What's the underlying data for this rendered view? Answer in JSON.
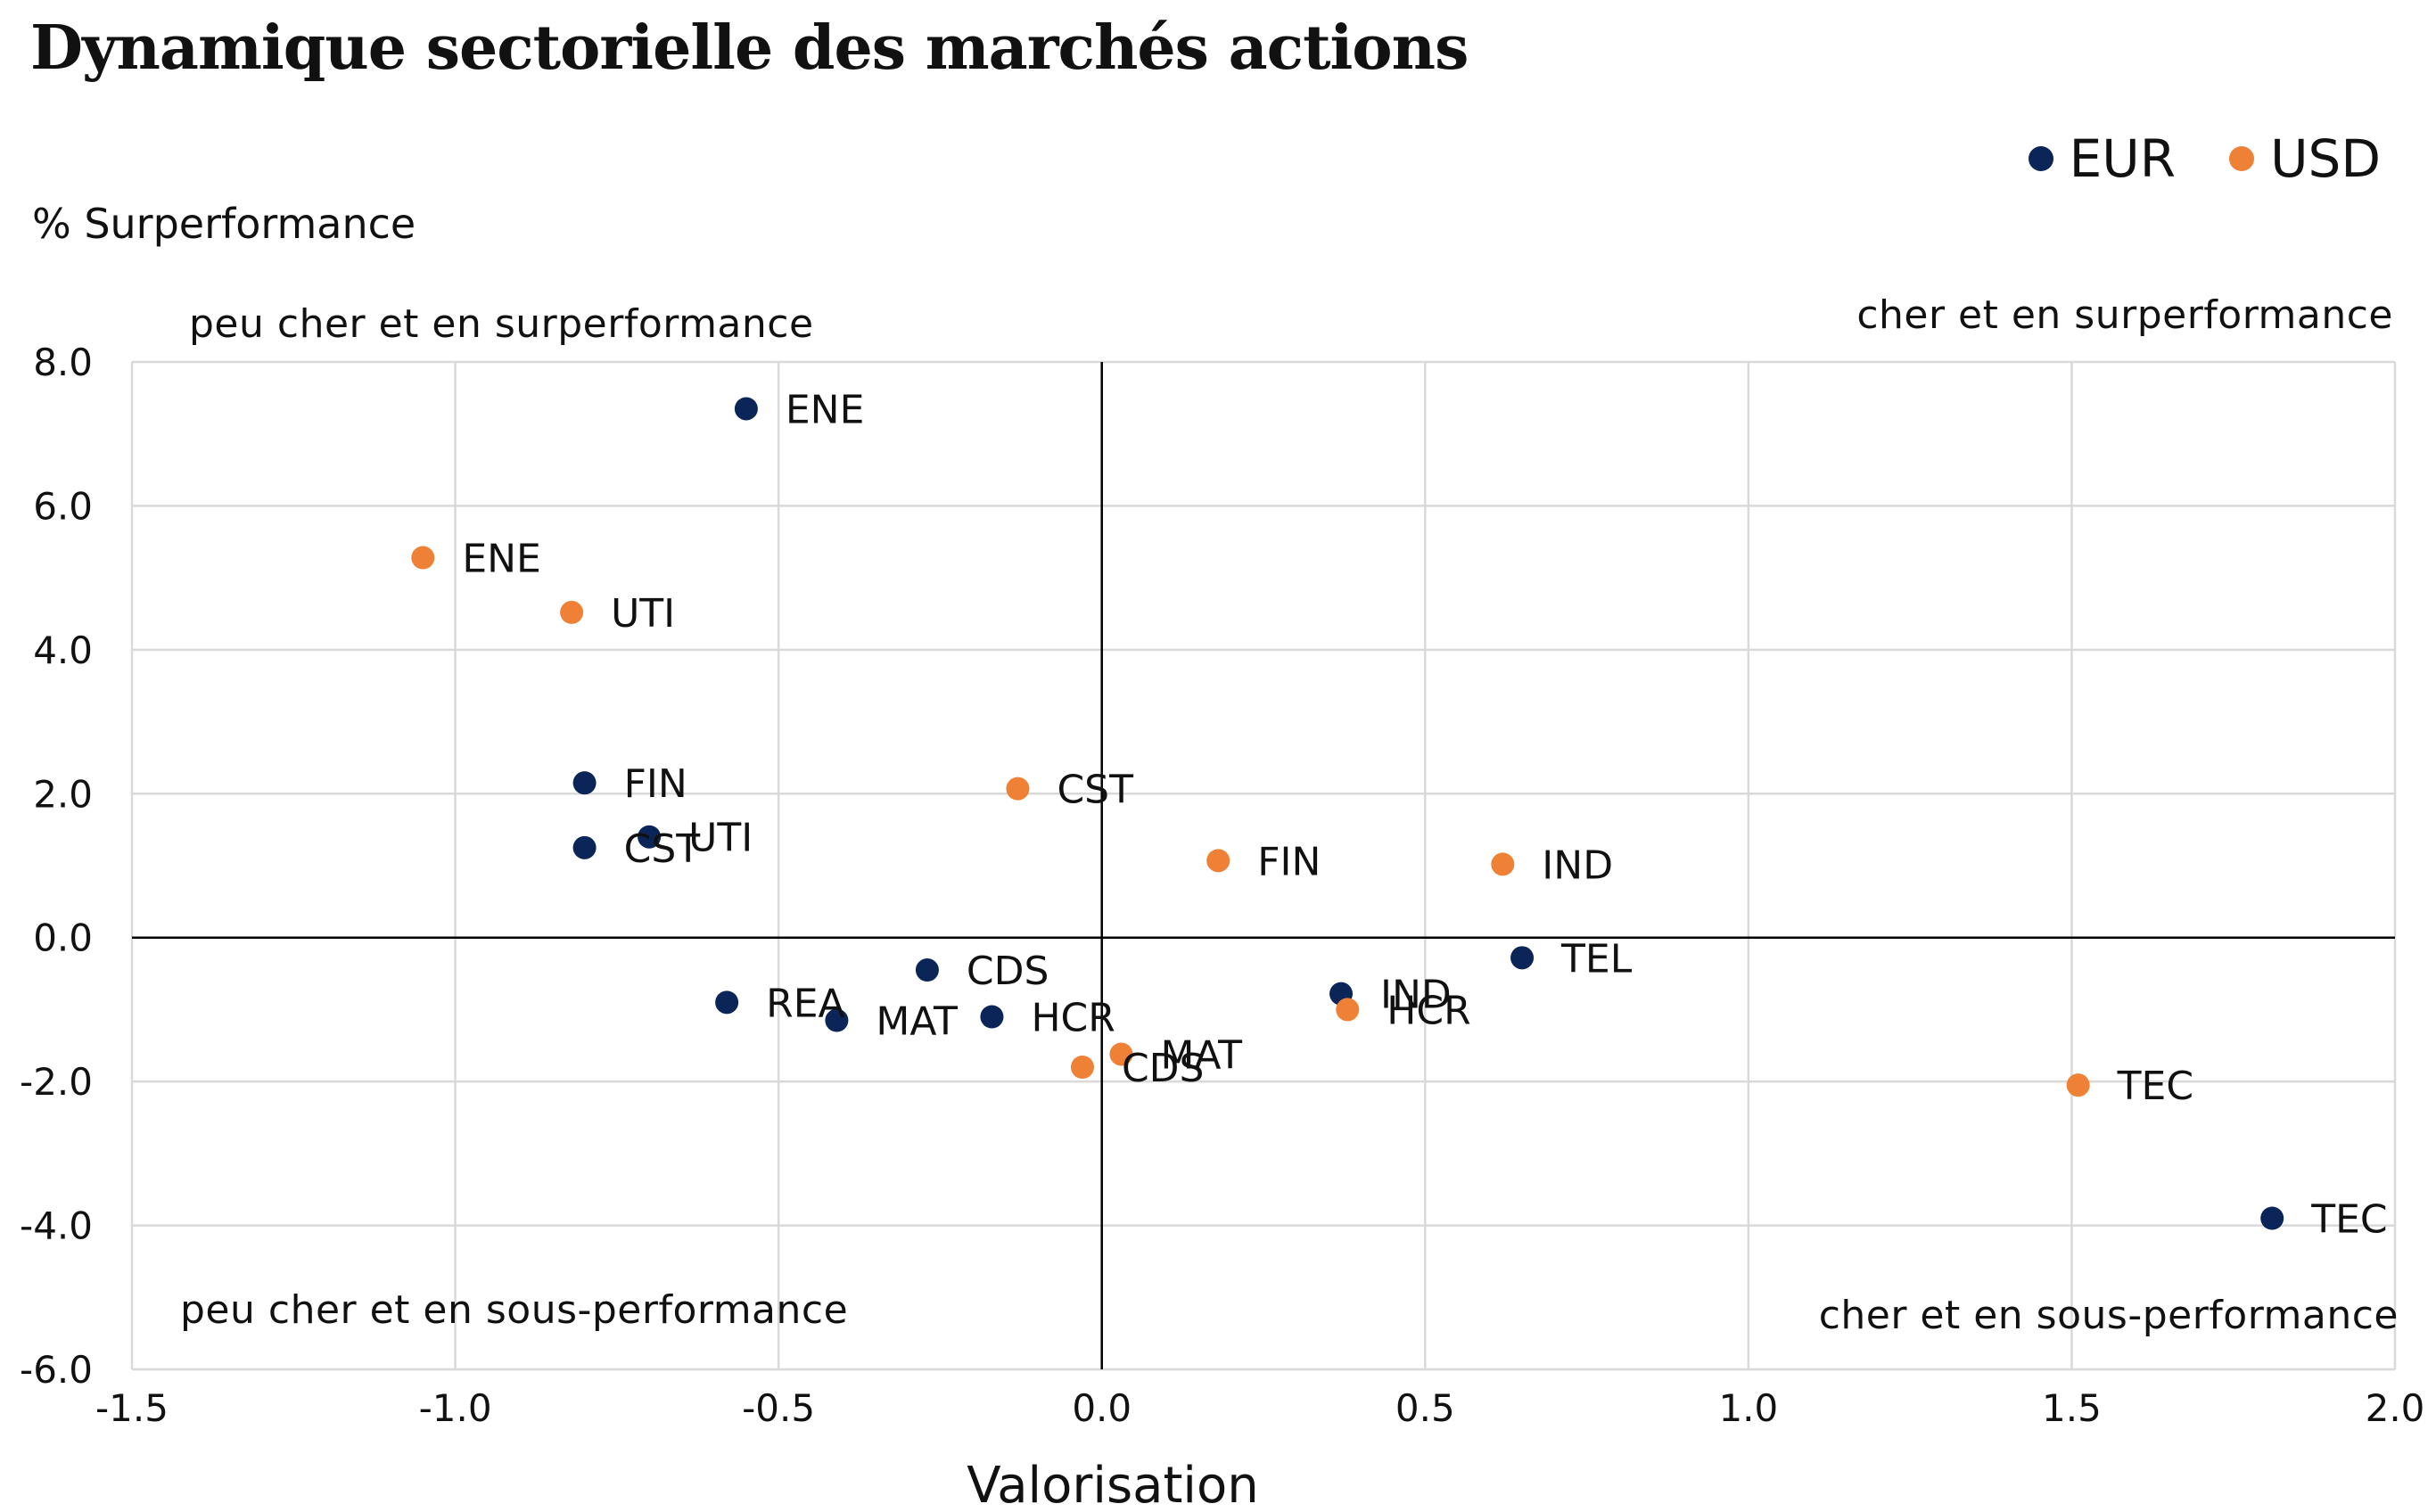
{
  "title": "Dynamique sectorielle des marchés actions",
  "colors": {
    "EUR": "#0b2559",
    "USD": "#ee8135",
    "grid": "#d9d9d9",
    "axis": "#000000"
  },
  "legend": [
    {
      "name": "EUR",
      "color": "#0b2559"
    },
    {
      "name": "USD",
      "color": "#ee8135"
    }
  ],
  "quadrants": {
    "top_left": "peu cher et en surperformance",
    "top_right": "cher et en surperformance",
    "bottom_left": "peu cher et en sous-performance",
    "bottom_right": "cher et en sous-performance"
  },
  "chart_data": {
    "type": "scatter",
    "title": "Dynamique sectorielle des marchés actions",
    "xlabel": "Valorisation",
    "ylabel": "% Surperformance",
    "xlim": [
      -1.5,
      2.0
    ],
    "ylim": [
      -6.0,
      8.0
    ],
    "xticks": [
      "-1.5",
      "-1.0",
      "-0.5",
      "0.0",
      "0.5",
      "1.0",
      "1.5",
      "2.0"
    ],
    "yticks": [
      "8.0",
      "6.0",
      "4.0",
      "2.0",
      "0.0",
      "-2.0",
      "-4.0",
      "-6.0"
    ],
    "grid": true,
    "legend_position": "top-right",
    "series": [
      {
        "name": "EUR",
        "color": "#0b2559",
        "points": [
          {
            "label": "ENE",
            "x": -0.55,
            "y": 7.35
          },
          {
            "label": "FIN",
            "x": -0.8,
            "y": 2.15
          },
          {
            "label": "UTI",
            "x": -0.7,
            "y": 1.4
          },
          {
            "label": "CST",
            "x": -0.8,
            "y": 1.25
          },
          {
            "label": "CDS",
            "x": -0.27,
            "y": -0.45
          },
          {
            "label": "REA",
            "x": -0.58,
            "y": -0.9
          },
          {
            "label": "MAT",
            "x": -0.41,
            "y": -1.15
          },
          {
            "label": "HCR",
            "x": -0.17,
            "y": -1.1
          },
          {
            "label": "IND",
            "x": 0.37,
            "y": -0.78
          },
          {
            "label": "TEL",
            "x": 0.65,
            "y": -0.28
          },
          {
            "label": "TEC",
            "x": 1.81,
            "y": -3.9
          }
        ]
      },
      {
        "name": "USD",
        "color": "#ee8135",
        "points": [
          {
            "label": "ENE",
            "x": -1.05,
            "y": 5.28
          },
          {
            "label": "UTI",
            "x": -0.82,
            "y": 4.52
          },
          {
            "label": "CST",
            "x": -0.13,
            "y": 2.07
          },
          {
            "label": "FIN",
            "x": 0.18,
            "y": 1.07
          },
          {
            "label": "IND",
            "x": 0.62,
            "y": 1.02
          },
          {
            "label": "HCR",
            "x": 0.38,
            "y": -1.0
          },
          {
            "label": "MAT",
            "x": 0.03,
            "y": -1.62
          },
          {
            "label": "CDS",
            "x": -0.03,
            "y": -1.8
          },
          {
            "label": "TEC",
            "x": 1.51,
            "y": -2.05
          }
        ]
      }
    ]
  }
}
